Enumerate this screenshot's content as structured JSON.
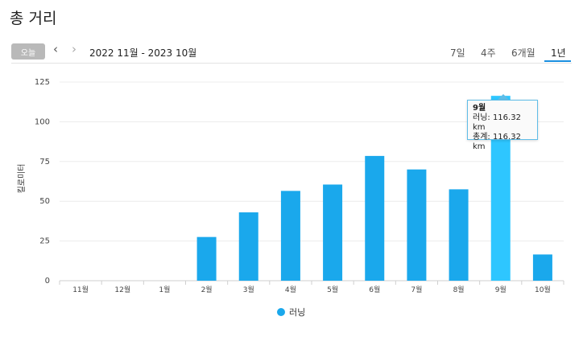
{
  "page": {
    "title": "총 거리",
    "today_label": "오늘",
    "range_label": "2022 11월 - 2023 10월",
    "prev_icon": "chevron-left-icon",
    "next_icon": "chevron-right-icon",
    "tabs": [
      {
        "label": "7일",
        "active": false
      },
      {
        "label": "4주",
        "active": false
      },
      {
        "label": "6개월",
        "active": false
      },
      {
        "label": "1년",
        "active": true
      }
    ]
  },
  "tooltip": {
    "title": "9월",
    "line1": "러닝: 116.32 km",
    "line2": "총계: 116.32 km"
  },
  "chart_data": {
    "type": "bar",
    "categories": [
      "11월",
      "12월",
      "1월",
      "2월",
      "3월",
      "4월",
      "5월",
      "6월",
      "7월",
      "8월",
      "9월",
      "10월"
    ],
    "series": [
      {
        "name": "러닝",
        "values": [
          0,
          0,
          0,
          27.5,
          43,
          56.5,
          60.5,
          78.5,
          70,
          57.5,
          116.32,
          16.5
        ]
      }
    ],
    "ylabel": "킬로미터",
    "ylim": [
      0,
      125
    ],
    "yticks": [
      0,
      25,
      50,
      75,
      100,
      125
    ],
    "grid": true,
    "legend_position": "bottom-center",
    "highlighted_index": 10,
    "colors": {
      "bar": "#1aa8ec",
      "highlight": "#2ec6ff",
      "grid": "#ececec"
    }
  }
}
